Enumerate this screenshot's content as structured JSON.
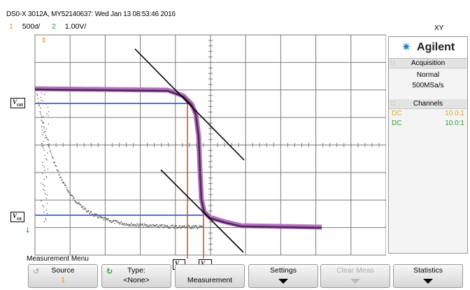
{
  "header": {
    "title": "DS0-X 3012A, MY52140637: Wed Jan 13 08:53:46 2016",
    "ch1_num": "1",
    "ch1_scale": "500&/",
    "ch2_num": "2",
    "ch2_scale": "1.00V/",
    "mode": "XY"
  },
  "panel": {
    "brand": "Agilent",
    "acquisition_title": "Acquisition",
    "acquisition_mode": "Normal",
    "sample_rate": "500MSa/s",
    "channels_title": "Channels",
    "channels": [
      {
        "coupling": "DC",
        "probe": "10.0:1",
        "color": "#e7a700"
      },
      {
        "coupling": "DC",
        "probe": "10.0:1",
        "color": "#2aa52a"
      }
    ]
  },
  "labels": {
    "voh": "V",
    "voh_sub": "OH",
    "vol": "V",
    "vol_sub": "OL",
    "vil": "V",
    "vil_sub": "IL",
    "vih": "V",
    "vih_sub": "IH"
  },
  "menu": {
    "title": "Measurement Menu",
    "source_label": "Source",
    "source_value": "1",
    "type_label": "Type:",
    "type_value": "<None>",
    "measurement_label": "Measurement",
    "settings_label": "Settings",
    "clear_label": "Clear Meas",
    "statistics_label": "Statistics"
  },
  "colors": {
    "trace": "#4a2b4e",
    "trace_glow": "#b56fc2",
    "blue_lines": "#3a5fd0",
    "red_lines": "#d9542c",
    "grid": "#7a7a7a",
    "ch1": "#d6a200",
    "ch2": "#2aa52a"
  }
}
